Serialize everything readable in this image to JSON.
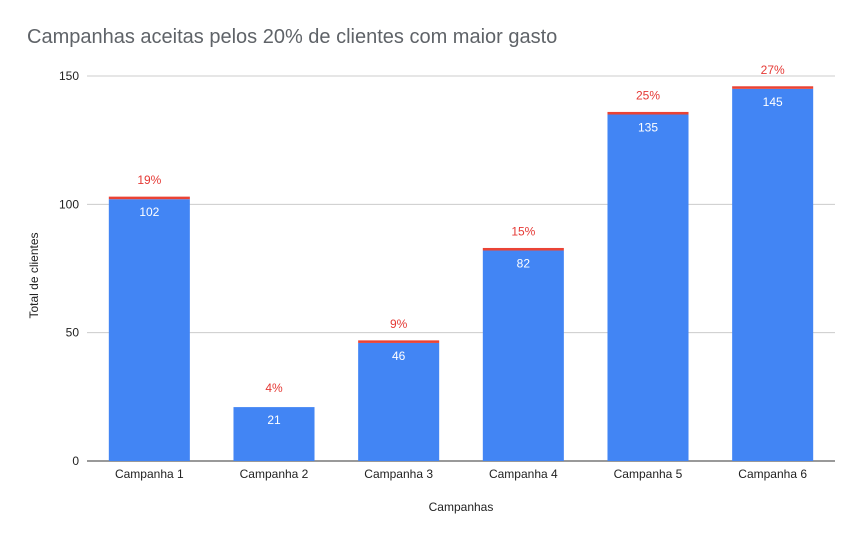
{
  "chart_data": {
    "type": "bar",
    "title": "Campanhas aceitas pelos 20% de clientes com maior gasto",
    "xlabel": "Campanhas",
    "ylabel": "Total de clientes",
    "categories": [
      "Campanha 1",
      "Campanha 2",
      "Campanha 3",
      "Campanha 4",
      "Campanha 5",
      "Campanha 6"
    ],
    "series": [
      {
        "values": [
          102,
          21,
          46,
          82,
          135,
          145
        ],
        "color": "#4285f4"
      },
      {
        "values": [
          1,
          0,
          1,
          1,
          1,
          1
        ],
        "color": "#ea4335"
      }
    ],
    "bar_labels": [
      "102",
      "21",
      "46",
      "82",
      "135",
      "145"
    ],
    "percent_labels": [
      "19%",
      "4%",
      "9%",
      "15%",
      "25%",
      "27%"
    ],
    "yticks": [
      0,
      50,
      100,
      150
    ],
    "ylim": [
      0,
      150
    ],
    "grid": true,
    "legend": "none"
  }
}
